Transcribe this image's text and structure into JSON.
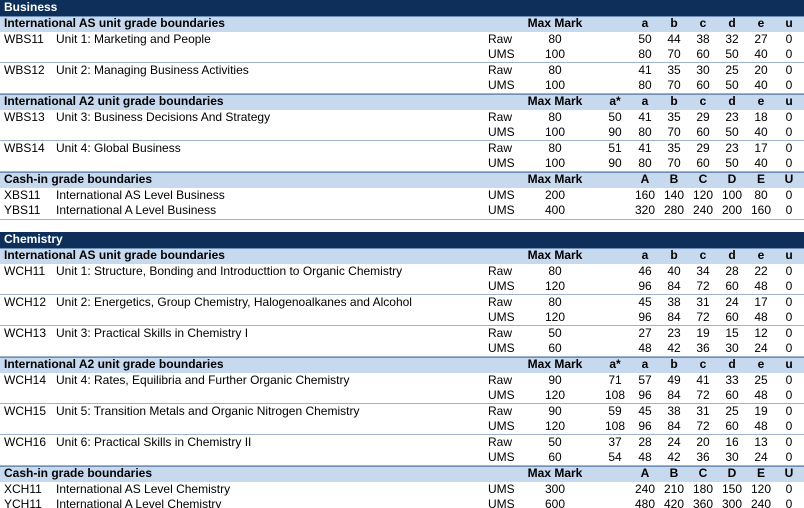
{
  "sections": [
    {
      "title": "Business",
      "groups": [
        {
          "title": "International AS unit grade boundaries",
          "max_header": "Max Mark",
          "grade_headers": [
            "a",
            "b",
            "c",
            "d",
            "e",
            "u"
          ],
          "rows": [
            {
              "code": "WBS11",
              "name": "Unit 1: Marketing and People",
              "lines": [
                {
                  "type": "Raw",
                  "max": 80,
                  "grades": [
                    50,
                    44,
                    38,
                    32,
                    27,
                    0
                  ]
                },
                {
                  "type": "UMS",
                  "max": 100,
                  "grades": [
                    80,
                    70,
                    60,
                    50,
                    40,
                    0
                  ]
                }
              ]
            },
            {
              "code": "WBS12",
              "name": "Unit 2: Managing Business Activities",
              "lines": [
                {
                  "type": "Raw",
                  "max": 80,
                  "grades": [
                    41,
                    35,
                    30,
                    25,
                    20,
                    0
                  ]
                },
                {
                  "type": "UMS",
                  "max": 100,
                  "grades": [
                    80,
                    70,
                    60,
                    50,
                    40,
                    0
                  ]
                }
              ]
            }
          ]
        },
        {
          "title": "International A2 unit grade boundaries",
          "max_header": "Max Mark",
          "grade_headers": [
            "a*",
            "a",
            "b",
            "c",
            "d",
            "e",
            "u"
          ],
          "rows": [
            {
              "code": "WBS13",
              "name": "Unit 3: Business Decisions And Strategy",
              "lines": [
                {
                  "type": "Raw",
                  "max": 80,
                  "grades": [
                    50,
                    41,
                    35,
                    29,
                    23,
                    18,
                    0
                  ]
                },
                {
                  "type": "UMS",
                  "max": 100,
                  "grades": [
                    90,
                    80,
                    70,
                    60,
                    50,
                    40,
                    0
                  ]
                }
              ]
            },
            {
              "code": "WBS14",
              "name": "Unit 4: Global Business",
              "lines": [
                {
                  "type": "Raw",
                  "max": 80,
                  "grades": [
                    51,
                    41,
                    35,
                    29,
                    23,
                    17,
                    0
                  ]
                },
                {
                  "type": "UMS",
                  "max": 100,
                  "grades": [
                    90,
                    80,
                    70,
                    60,
                    50,
                    40,
                    0
                  ]
                }
              ]
            }
          ]
        },
        {
          "title": "Cash-in grade boundaries",
          "max_header": "Max Mark",
          "grade_headers": [
            "A",
            "B",
            "C",
            "D",
            "E",
            "U"
          ],
          "cashin": true,
          "rows": [
            {
              "code": "XBS11",
              "name": "International AS Level Business",
              "lines": [
                {
                  "type": "UMS",
                  "max": 200,
                  "grades": [
                    160,
                    140,
                    120,
                    100,
                    80,
                    0
                  ]
                }
              ]
            },
            {
              "code": "YBS11",
              "name": "International A Level Business",
              "lines": [
                {
                  "type": "UMS",
                  "max": 400,
                  "grades": [
                    320,
                    280,
                    240,
                    200,
                    160,
                    0
                  ]
                }
              ]
            }
          ]
        }
      ]
    },
    {
      "title": "Chemistry",
      "groups": [
        {
          "title": "International AS unit grade boundaries",
          "max_header": "Max Mark",
          "grade_headers": [
            "a",
            "b",
            "c",
            "d",
            "e",
            "u"
          ],
          "rows": [
            {
              "code": "WCH11",
              "name": "Unit 1: Structure, Bonding and Introducttion to Organic Chemistry",
              "lines": [
                {
                  "type": "Raw",
                  "max": 80,
                  "grades": [
                    46,
                    40,
                    34,
                    28,
                    22,
                    0
                  ]
                },
                {
                  "type": "UMS",
                  "max": 120,
                  "grades": [
                    96,
                    84,
                    72,
                    60,
                    48,
                    0
                  ]
                }
              ]
            },
            {
              "code": "WCH12",
              "name": "Unit 2: Energetics, Group Chemistry, Halogenoalkanes and Alcohol",
              "lines": [
                {
                  "type": "Raw",
                  "max": 80,
                  "grades": [
                    45,
                    38,
                    31,
                    24,
                    17,
                    0
                  ]
                },
                {
                  "type": "UMS",
                  "max": 120,
                  "grades": [
                    96,
                    84,
                    72,
                    60,
                    48,
                    0
                  ]
                }
              ]
            },
            {
              "code": "WCH13",
              "name": "Unit 3: Practical Skills in Chemistry I",
              "lines": [
                {
                  "type": "Raw",
                  "max": 50,
                  "grades": [
                    27,
                    23,
                    19,
                    15,
                    12,
                    0
                  ]
                },
                {
                  "type": "UMS",
                  "max": 60,
                  "grades": [
                    48,
                    42,
                    36,
                    30,
                    24,
                    0
                  ]
                }
              ]
            }
          ]
        },
        {
          "title": "International A2 unit grade boundaries",
          "max_header": "Max Mark",
          "grade_headers": [
            "a*",
            "a",
            "b",
            "c",
            "d",
            "e",
            "u"
          ],
          "rows": [
            {
              "code": "WCH14",
              "name": "Unit 4: Rates, Equilibria and Further Organic Chemistry",
              "lines": [
                {
                  "type": "Raw",
                  "max": 90,
                  "grades": [
                    71,
                    57,
                    49,
                    41,
                    33,
                    25,
                    0
                  ]
                },
                {
                  "type": "UMS",
                  "max": 120,
                  "grades": [
                    108,
                    96,
                    84,
                    72,
                    60,
                    48,
                    0
                  ]
                }
              ]
            },
            {
              "code": "WCH15",
              "name": "Unit 5: Transition Metals and Organic Nitrogen Chemistry",
              "lines": [
                {
                  "type": "Raw",
                  "max": 90,
                  "grades": [
                    59,
                    45,
                    38,
                    31,
                    25,
                    19,
                    0
                  ]
                },
                {
                  "type": "UMS",
                  "max": 120,
                  "grades": [
                    108,
                    96,
                    84,
                    72,
                    60,
                    48,
                    0
                  ]
                }
              ]
            },
            {
              "code": "WCH16",
              "name": "Unit 6: Practical Skills in Chemistry II",
              "lines": [
                {
                  "type": "Raw",
                  "max": 50,
                  "grades": [
                    37,
                    28,
                    24,
                    20,
                    16,
                    13,
                    0
                  ]
                },
                {
                  "type": "UMS",
                  "max": 60,
                  "grades": [
                    54,
                    48,
                    42,
                    36,
                    30,
                    24,
                    0
                  ]
                }
              ]
            }
          ]
        },
        {
          "title": "Cash-in grade boundaries",
          "max_header": "Max Mark",
          "grade_headers": [
            "A",
            "B",
            "C",
            "D",
            "E",
            "U"
          ],
          "cashin": true,
          "rows": [
            {
              "code": "XCH11",
              "name": "International AS Level Chemistry",
              "lines": [
                {
                  "type": "UMS",
                  "max": 300,
                  "grades": [
                    240,
                    210,
                    180,
                    150,
                    120,
                    0
                  ]
                }
              ]
            },
            {
              "code": "YCH11",
              "name": "International A Level Chemistry",
              "lines": [
                {
                  "type": "UMS",
                  "max": 600,
                  "grades": [
                    480,
                    420,
                    360,
                    300,
                    240,
                    0
                  ]
                }
              ]
            }
          ]
        }
      ]
    }
  ]
}
